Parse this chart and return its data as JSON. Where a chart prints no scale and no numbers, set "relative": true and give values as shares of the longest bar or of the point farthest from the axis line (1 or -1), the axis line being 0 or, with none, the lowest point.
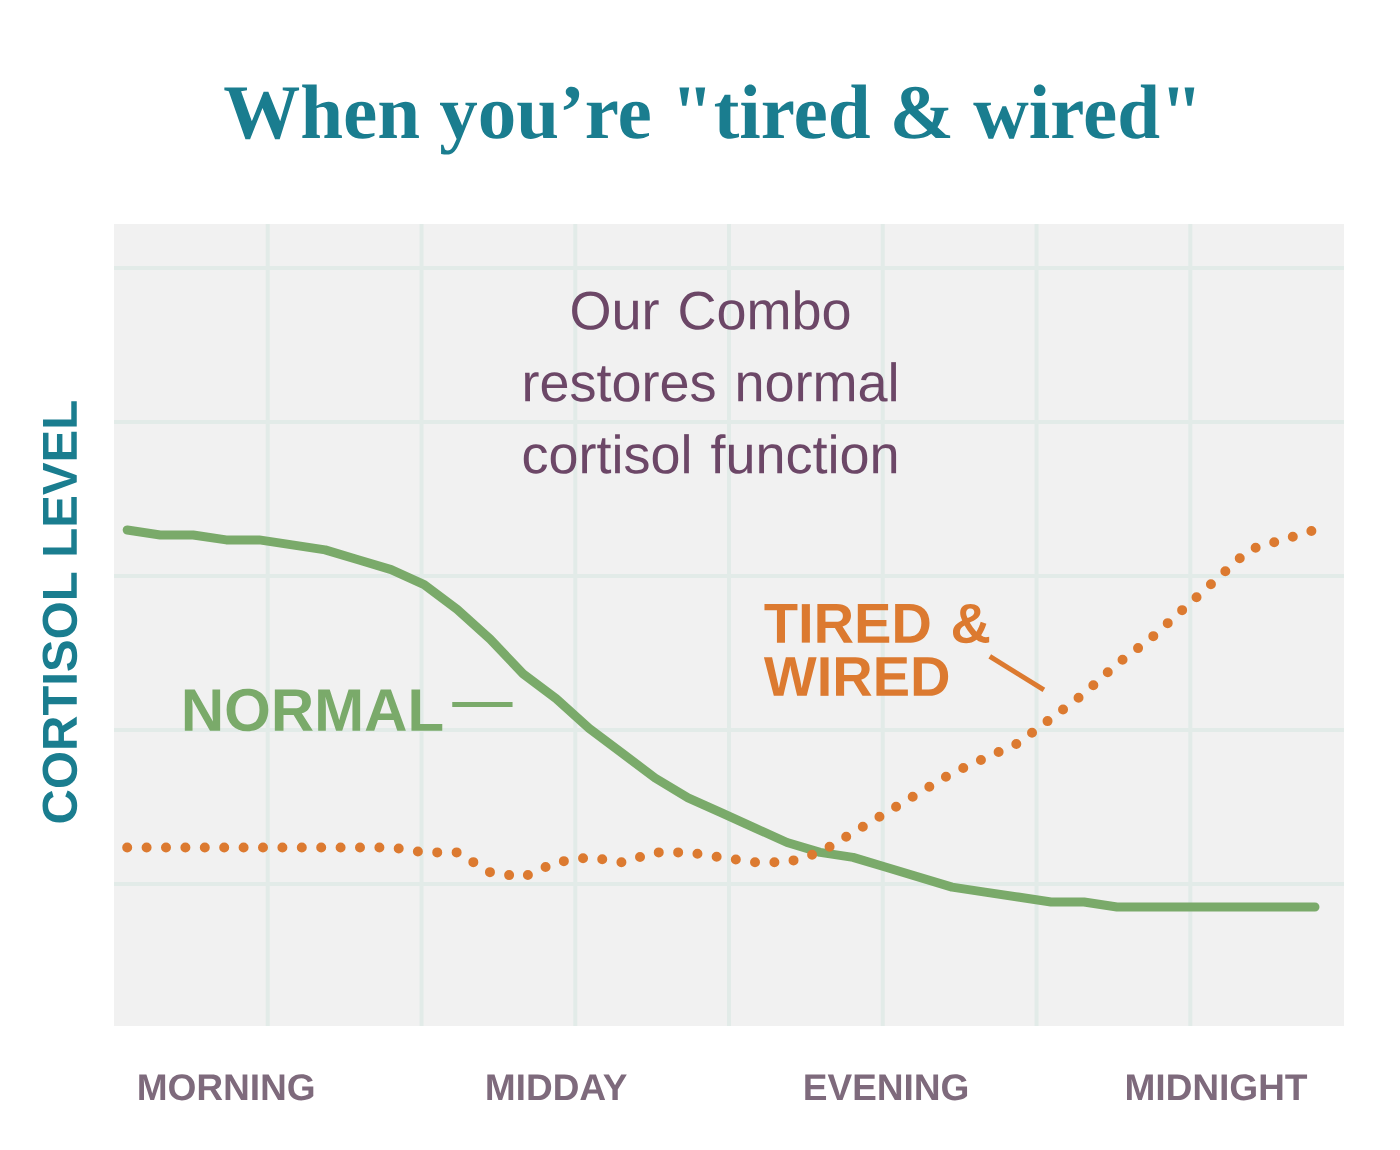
{
  "chart_data": {
    "type": "line",
    "title": "When you’re \"tired & wired\"",
    "ylabel": "CORTISOL LEVEL",
    "annotations": [
      "Our Combo restores normal cortisol function"
    ],
    "relative": true,
    "grid": true,
    "legend": "left",
    "categories": [
      null,
      null,
      null,
      "MORNING",
      null,
      null,
      null,
      null,
      null,
      null,
      null,
      null,
      null,
      "MIDDAY",
      null,
      null,
      null,
      null,
      null,
      null,
      null,
      null,
      null,
      "EVENING",
      null,
      null,
      null,
      null,
      null,
      null,
      null,
      null,
      null,
      "MIDNIGHT",
      null,
      null,
      null
    ],
    "series": [
      {
        "name": "NORMAL",
        "color": "#7aaa6a",
        "line_style": "solid",
        "values": [
          1.0,
          0.99,
          0.99,
          0.98,
          0.98,
          0.97,
          0.96,
          0.94,
          0.92,
          0.89,
          0.84,
          0.78,
          0.71,
          0.66,
          0.6,
          0.55,
          0.5,
          0.46,
          0.43,
          0.4,
          0.37,
          0.35,
          0.34,
          0.32,
          0.3,
          0.28,
          0.27,
          0.26,
          0.25,
          0.25,
          0.24,
          0.24,
          0.24,
          0.24,
          0.24,
          0.24,
          0.24
        ]
      },
      {
        "name": "TIRED & WIRED",
        "color": "#dc7a30",
        "line_style": "dotted",
        "values": [
          0.36,
          0.36,
          0.36,
          0.36,
          0.36,
          0.36,
          0.36,
          0.36,
          0.36,
          0.35,
          0.35,
          0.31,
          0.3,
          0.33,
          0.34,
          0.33,
          0.35,
          0.35,
          0.34,
          0.33,
          0.33,
          0.35,
          0.39,
          0.43,
          0.47,
          0.51,
          0.54,
          0.57,
          0.62,
          0.67,
          0.73,
          0.78,
          0.84,
          0.9,
          0.96,
          0.98,
          1.0
        ]
      }
    ]
  }
}
